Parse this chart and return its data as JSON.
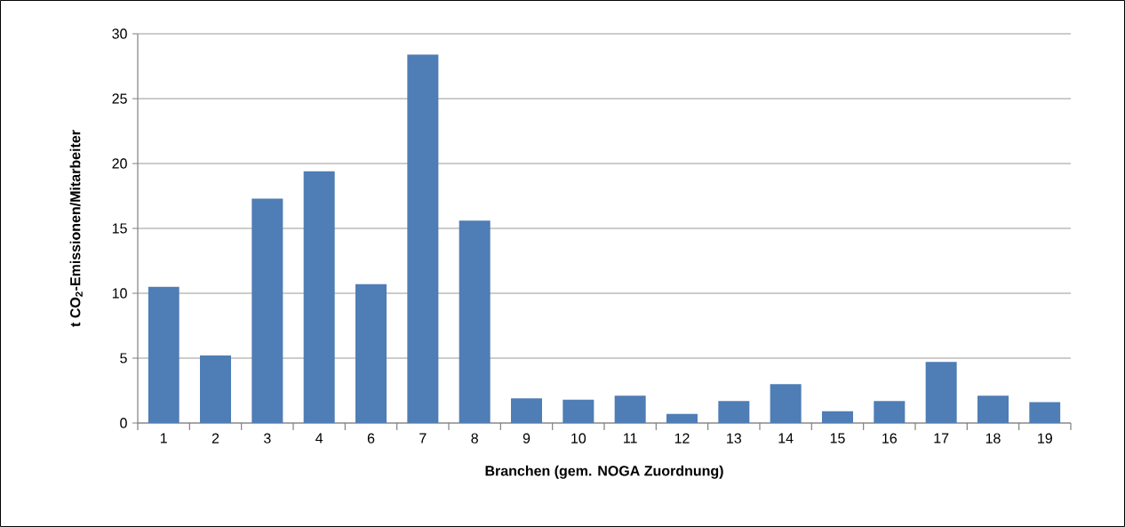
{
  "chart_data": {
    "type": "bar",
    "xlabel": "Branchen (gem. NOGA Zuordnung)",
    "ylabel": "t CO$_{2}$-Emissionen/Mitarbeiter",
    "categories": [
      "1",
      "2",
      "3",
      "4",
      "6",
      "7",
      "8",
      "9",
      "10",
      "11",
      "12",
      "13",
      "14",
      "15",
      "16",
      "17",
      "18",
      "19"
    ],
    "values": [
      10.5,
      5.2,
      17.3,
      19.4,
      10.7,
      28.4,
      15.6,
      1.9,
      1.8,
      2.1,
      0.7,
      1.7,
      3.0,
      0.9,
      1.7,
      4.7,
      2.1,
      1.6
    ],
    "color": "#4f7db5",
    "ylim": [
      0,
      30
    ],
    "yticks": [
      0,
      5,
      10,
      15,
      20,
      25,
      30
    ],
    "grid": "y"
  }
}
